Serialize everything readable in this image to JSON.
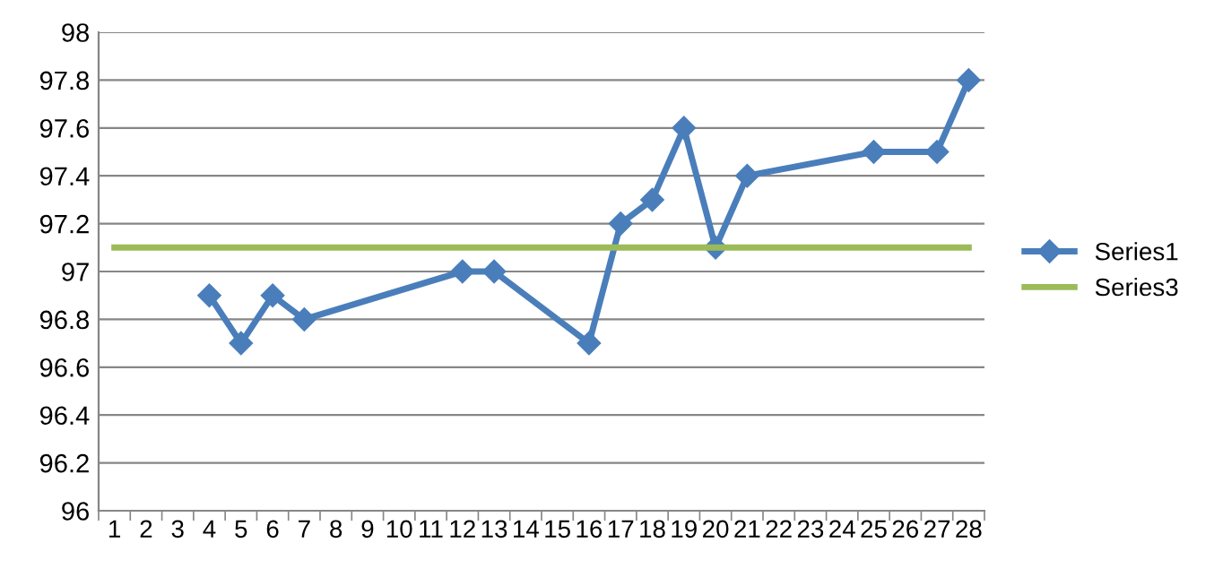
{
  "chart_data": {
    "type": "line",
    "categories": [
      "1",
      "2",
      "3",
      "4",
      "5",
      "6",
      "7",
      "8",
      "9",
      "10",
      "11",
      "12",
      "13",
      "14",
      "15",
      "16",
      "17",
      "18",
      "19",
      "20",
      "21",
      "22",
      "23",
      "24",
      "25",
      "26",
      "27",
      "28"
    ],
    "series": [
      {
        "name": "Series1",
        "color": "#4a7ebb",
        "marker": "diamond",
        "values": [
          null,
          null,
          null,
          96.9,
          96.7,
          96.9,
          96.8,
          null,
          null,
          null,
          null,
          97.0,
          97.0,
          null,
          null,
          96.7,
          97.2,
          97.3,
          97.6,
          97.1,
          97.4,
          null,
          null,
          null,
          97.5,
          null,
          97.5,
          97.8
        ]
      },
      {
        "name": "Series3",
        "color": "#9bbb59",
        "marker": "none",
        "values": [
          97.1,
          97.1,
          97.1,
          97.1,
          97.1,
          97.1,
          97.1,
          97.1,
          97.1,
          97.1,
          97.1,
          97.1,
          97.1,
          97.1,
          97.1,
          97.1,
          97.1,
          97.1,
          97.1,
          97.1,
          97.1,
          97.1,
          97.1,
          97.1,
          97.1,
          97.1,
          97.1,
          97.1
        ]
      }
    ],
    "ylim": [
      96,
      98
    ],
    "yticks": [
      96,
      96.2,
      96.4,
      96.6,
      96.8,
      97,
      97.2,
      97.4,
      97.6,
      97.8,
      98
    ],
    "grid": "y",
    "legend": "right",
    "line_style": "solid"
  }
}
